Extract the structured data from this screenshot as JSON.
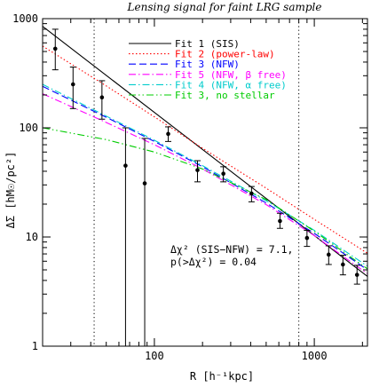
{
  "chart_data": {
    "type": "line",
    "title": "Lensing signal for faint LRG sample",
    "xlabel": "R [h⁻¹kpc]",
    "ylabel": "ΔΣ [hM☉/pc²]",
    "xscale": "log",
    "yscale": "log",
    "xlim": [
      20,
      2150
    ],
    "ylim": [
      1,
      1000
    ],
    "x_tick_labels": [
      "100",
      "1000"
    ],
    "y_tick_labels": [
      "1",
      "10",
      "100",
      "1000"
    ],
    "vertical_dotted_lines_x": [
      42,
      800
    ],
    "legend_position": "top-right",
    "points": [
      {
        "x": 24,
        "y": 530,
        "ylow": 340,
        "yhigh": 800
      },
      {
        "x": 31,
        "y": 250,
        "ylow": 150,
        "yhigh": 360
      },
      {
        "x": 47,
        "y": 190,
        "ylow": 120,
        "yhigh": 270
      },
      {
        "x": 66,
        "y": 45,
        "ylow": 1,
        "yhigh": 100
      },
      {
        "x": 87,
        "y": 31,
        "ylow": 1,
        "yhigh": 80
      },
      {
        "x": 122,
        "y": 88,
        "ylow": 75,
        "yhigh": 102
      },
      {
        "x": 186,
        "y": 41,
        "ylow": 32,
        "yhigh": 50
      },
      {
        "x": 270,
        "y": 38,
        "ylow": 32,
        "yhigh": 44
      },
      {
        "x": 405,
        "y": 25,
        "ylow": 21,
        "yhigh": 29
      },
      {
        "x": 610,
        "y": 14,
        "ylow": 12,
        "yhigh": 16.5
      },
      {
        "x": 900,
        "y": 9.8,
        "ylow": 8.2,
        "yhigh": 11.5
      },
      {
        "x": 1230,
        "y": 6.9,
        "ylow": 5.6,
        "yhigh": 8.3
      },
      {
        "x": 1510,
        "y": 5.6,
        "ylow": 4.5,
        "yhigh": 6.8
      },
      {
        "x": 1850,
        "y": 4.5,
        "ylow": 3.7,
        "yhigh": 5.5
      }
    ],
    "series": [
      {
        "name": "Fit 1 (SIS)",
        "color": "#000000",
        "dash": "solid",
        "x": [
          20,
          2150
        ],
        "y": [
          850,
          4.35
        ]
      },
      {
        "name": "Fit 2 (power-law)",
        "color": "#ff0000",
        "dash": "dotted",
        "x": [
          20,
          50,
          100,
          200,
          500,
          1000,
          2150
        ],
        "y": [
          560,
          242,
          126,
          65,
          28,
          14.5,
          7.1
        ]
      },
      {
        "name": "Fit 3 (NFW)",
        "color": "#0000ff",
        "dash": "dashed",
        "x": [
          20,
          50,
          100,
          200,
          500,
          1000,
          2150
        ],
        "y": [
          240,
          125,
          75,
          44,
          20.5,
          10.8,
          5.0
        ]
      },
      {
        "name": "Fit 5 (NFW, β free)",
        "color": "#ff00ff",
        "dash": "dashdot",
        "x": [
          20,
          50,
          100,
          200,
          500,
          1000,
          2150
        ],
        "y": [
          205,
          112,
          70,
          42,
          19.8,
          10.3,
          4.6
        ]
      },
      {
        "name": "Fit 4 (NFW, α free)",
        "color": "#00cccc",
        "dash": "dashdot",
        "x": [
          20,
          50,
          100,
          200,
          500,
          1000,
          2150
        ],
        "y": [
          250,
          128,
          77,
          45,
          21.5,
          11.5,
          5.4
        ]
      },
      {
        "name": "Fit 3, no stellar",
        "color": "#00cc00",
        "dash": "dashdotdot",
        "x": [
          20,
          50,
          100,
          200,
          500,
          1000,
          2150
        ],
        "y": [
          100,
          78,
          60,
          42,
          22,
          11.3,
          5.1
        ]
      }
    ],
    "annotations": [
      "Δχ² (SIS−NFW) = 7.1,",
      "p(>Δχ²) = 0.04"
    ]
  }
}
